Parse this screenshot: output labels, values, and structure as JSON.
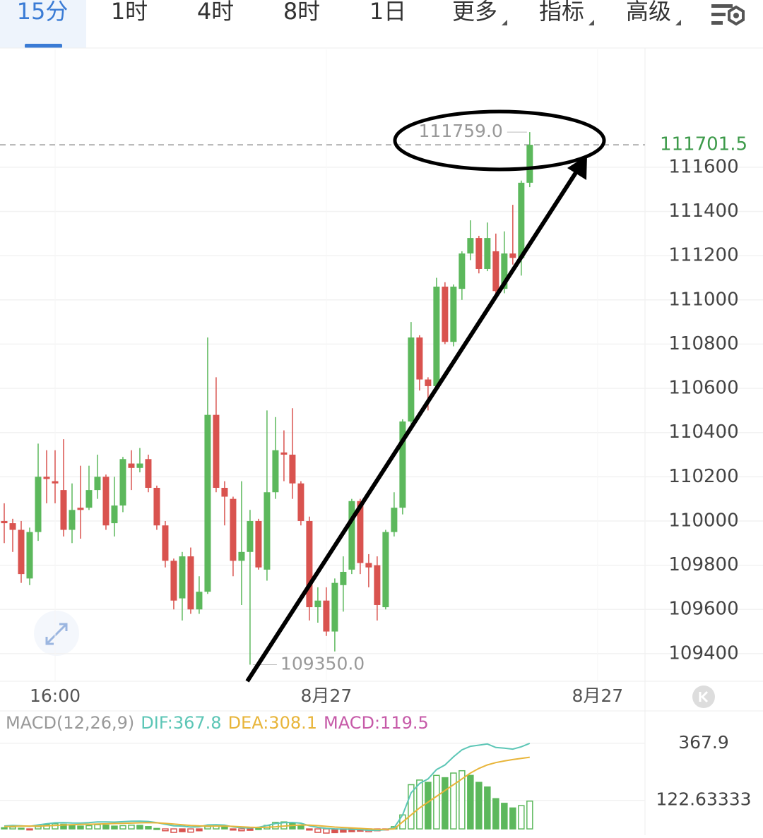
{
  "tabs": [
    "15分",
    "1时",
    "4时",
    "8时",
    "1日",
    "更多",
    "指标",
    "高级"
  ],
  "chart_data": {
    "type": "candlestick",
    "up_color": "#5cb85c",
    "down_color": "#d9534f",
    "open": [
      110000,
      109990,
      109960,
      109740,
      109950,
      110200,
      110180,
      110140,
      109960,
      110060,
      110060,
      110140,
      110200,
      109990,
      110070,
      110260,
      110240,
      110280,
      110150,
      109980,
      109820,
      109650,
      109840,
      109600,
      109680,
      110480,
      110150,
      110100,
      109820,
      109860,
      110000,
      109780,
      110130,
      110310,
      110300,
      110170,
      110000,
      109610,
      109640,
      109500,
      109710,
      109780,
      110090,
      109810,
      109800,
      109610,
      109950,
      110060,
      110450,
      110830,
      110640,
      110610,
      111060,
      110810,
      111050,
      111210,
      111280,
      111140,
      111220,
      111050,
      111210,
      111190,
      111530
    ],
    "high": [
      110080,
      110010,
      110000,
      109970,
      110350,
      110320,
      110320,
      110370,
      110170,
      110250,
      110250,
      110300,
      110210,
      110200,
      110290,
      110320,
      110330,
      110300,
      110160,
      110000,
      109830,
      109860,
      109880,
      109750,
      110830,
      110650,
      110180,
      110110,
      110180,
      110050,
      110010,
      110500,
      110470,
      110410,
      110510,
      110180,
      110020,
      109700,
      109700,
      109740,
      109840,
      110100,
      110100,
      109850,
      109840,
      109960,
      110130,
      110460,
      110900,
      110840,
      110650,
      111100,
      111080,
      111070,
      111220,
      111360,
      111290,
      111350,
      111300,
      111310,
      111430,
      111540,
      111759
    ],
    "low": [
      109900,
      109860,
      109720,
      109710,
      109910,
      110080,
      110080,
      109930,
      109900,
      109920,
      110050,
      110100,
      109960,
      109930,
      110040,
      110140,
      110220,
      110130,
      109960,
      109790,
      109600,
      109550,
      109580,
      109580,
      109670,
      110130,
      109980,
      109750,
      109620,
      109350,
      109780,
      109730,
      110100,
      110180,
      110100,
      109980,
      109550,
      109540,
      109480,
      109410,
      109590,
      109760,
      109760,
      109700,
      109550,
      109600,
      109930,
      110030,
      110440,
      110590,
      110500,
      110600,
      110800,
      110790,
      111000,
      111180,
      111120,
      111130,
      111030,
      111030,
      111160,
      111110,
      111510
    ],
    "close": [
      109990,
      109960,
      109760,
      109950,
      110200,
      110190,
      110170,
      109960,
      110050,
      110050,
      110140,
      110200,
      109980,
      110070,
      110280,
      110240,
      110260,
      110150,
      109980,
      109820,
      109640,
      109840,
      109600,
      109680,
      110480,
      110150,
      110110,
      109820,
      109860,
      110000,
      109790,
      110130,
      110320,
      110300,
      110170,
      110000,
      109610,
      109640,
      109500,
      109720,
      109770,
      110090,
      109810,
      109790,
      109620,
      109950,
      110060,
      110450,
      110830,
      110640,
      110610,
      111060,
      110810,
      111060,
      111210,
      111280,
      111140,
      111280,
      111040,
      111210,
      111190,
      111530,
      111701.5
    ],
    "ylim": [
      109275,
      112133
    ],
    "yticks": [
      109400,
      109600,
      109800,
      110000,
      110200,
      110400,
      110600,
      110800,
      111000,
      111200,
      111400,
      111600
    ],
    "last_price": 111701.5,
    "high_label": {
      "value": 111759,
      "label": "111759.0"
    },
    "low_label": {
      "value": 109350,
      "label": "109350.0"
    },
    "xlim": [
      -0.5,
      75.6
    ],
    "xticks": [
      {
        "value": 6,
        "label": "16:00"
      },
      {
        "value": 38,
        "label": "8月27"
      },
      {
        "value": 70,
        "label": "8月27"
      }
    ],
    "grid": true,
    "macd": {
      "legend": [
        "MACD(12,26,9)",
        "DIF:367.8",
        "DEA:308.1",
        "MACD:119.5"
      ],
      "legend_colors": [
        "#999999",
        "#5cc6b6",
        "#e8b53a",
        "#c65aa8"
      ],
      "ylim": [
        -27,
        498
      ],
      "yticks": [
        122.63333,
        367.9
      ],
      "hist": [
        5,
        8,
        3,
        -2,
        10,
        18,
        22,
        20,
        15,
        12,
        14,
        18,
        16,
        12,
        14,
        16,
        15,
        10,
        2,
        -8,
        -15,
        -12,
        -14,
        -8,
        10,
        12,
        8,
        -5,
        -8,
        -6,
        2,
        15,
        28,
        30,
        25,
        15,
        -5,
        -15,
        -18,
        -16,
        -14,
        -12,
        -10,
        -12,
        -8,
        -2,
        10,
        60,
        190,
        210,
        200,
        230,
        220,
        240,
        250,
        230,
        200,
        180,
        130,
        110,
        90,
        100,
        119.5
      ],
      "dif": [
        12.5,
        15,
        13.5,
        11,
        17,
        22,
        26,
        27,
        25.5,
        25,
        27,
        30,
        30,
        29,
        31,
        33,
        33.5,
        32,
        27,
        20,
        13.5,
        12,
        8,
        9,
        17,
        18,
        16,
        8.5,
        5,
        4,
        7,
        14.5,
        23,
        27,
        27.5,
        24.5,
        13.5,
        6.5,
        2,
        0,
        -1,
        -2,
        -3,
        -6,
        -6,
        -3,
        5,
        60,
        155,
        195,
        215,
        255,
        275,
        310,
        340,
        355,
        360,
        365,
        350,
        347,
        343,
        353,
        367.8
      ],
      "dea": [
        10,
        11,
        12,
        12,
        12,
        13,
        15,
        17,
        18,
        19,
        20,
        21,
        22,
        23,
        24,
        25,
        26,
        27,
        26,
        24,
        21,
        18,
        15,
        13,
        12,
        12,
        12,
        11,
        9,
        7,
        6,
        7,
        9,
        12,
        15,
        17,
        16,
        14,
        11,
        8,
        6,
        4,
        2,
        0,
        -2,
        -2,
        0,
        30,
        60,
        90,
        115,
        140,
        165,
        190,
        215,
        240,
        260,
        275,
        285,
        292,
        298,
        303,
        308.1
      ]
    }
  }
}
